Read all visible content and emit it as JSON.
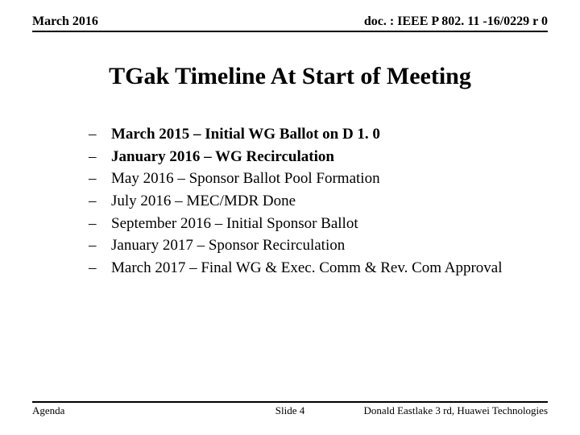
{
  "header": {
    "left": "March 2016",
    "right": "doc. : IEEE P 802. 11 -16/0229 r 0"
  },
  "title": "TGak Timeline At Start of Meeting",
  "items": [
    {
      "text": "March 2015 – Initial WG Ballot on D 1. 0",
      "bold": true
    },
    {
      "text": "January 2016 – WG Recirculation",
      "bold": true
    },
    {
      "text": "May 2016 – Sponsor Ballot Pool Formation",
      "bold": false
    },
    {
      "text": "July 2016 – MEC/MDR Done",
      "bold": false
    },
    {
      "text": "September 2016 – Initial Sponsor Ballot",
      "bold": false
    },
    {
      "text": "January 2017 – Sponsor Recirculation",
      "bold": false
    },
    {
      "text": "March 2017 – Final WG & Exec. Comm & Rev. Com Approval",
      "bold": false
    }
  ],
  "footer": {
    "left": "Agenda",
    "center": "Slide 4",
    "right": "Donald Eastlake 3 rd, Huawei Technologies"
  },
  "style": {
    "background": "#ffffff",
    "text_color": "#000000",
    "rule_color": "#000000",
    "title_fontsize": 30,
    "body_fontsize": 19,
    "header_fontsize": 16,
    "footer_fontsize": 13
  }
}
